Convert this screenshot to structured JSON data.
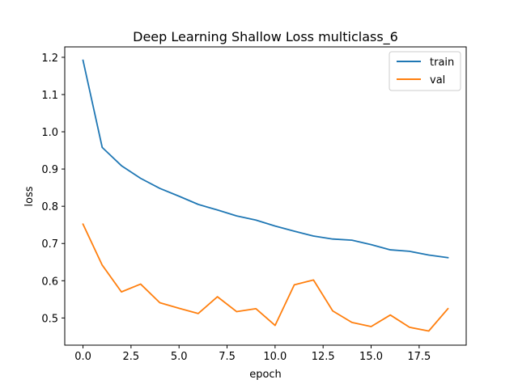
{
  "chart_data": {
    "type": "line",
    "title": "Deep Learning Shallow Loss multiclass_6",
    "xlabel": "epoch",
    "ylabel": "loss",
    "xlim": [
      -0.95,
      19.95
    ],
    "ylim": [
      0.427,
      1.228
    ],
    "xticks": [
      0.0,
      2.5,
      5.0,
      7.5,
      10.0,
      12.5,
      15.0,
      17.5
    ],
    "xtick_labels": [
      "0.0",
      "2.5",
      "5.0",
      "7.5",
      "10.0",
      "12.5",
      "15.0",
      "17.5"
    ],
    "yticks": [
      0.5,
      0.6,
      0.7,
      0.8,
      0.9,
      1.0,
      1.1,
      1.2
    ],
    "ytick_labels": [
      "0.5",
      "0.6",
      "0.7",
      "0.8",
      "0.9",
      "1.0",
      "1.1",
      "1.2"
    ],
    "grid": false,
    "legend": "top-right",
    "x": [
      0,
      1,
      2,
      3,
      4,
      5,
      6,
      7,
      8,
      9,
      10,
      11,
      12,
      13,
      14,
      15,
      16,
      17,
      18,
      19
    ],
    "series": [
      {
        "name": "train",
        "color": "#1f77b4",
        "values": [
          1.192,
          0.958,
          0.909,
          0.875,
          0.848,
          0.827,
          0.805,
          0.79,
          0.774,
          0.763,
          0.747,
          0.733,
          0.72,
          0.712,
          0.709,
          0.697,
          0.683,
          0.679,
          0.669,
          0.662
        ]
      },
      {
        "name": "val",
        "color": "#ff7f0e",
        "values": [
          0.752,
          0.642,
          0.57,
          0.591,
          0.541,
          0.526,
          0.512,
          0.557,
          0.517,
          0.525,
          0.48,
          0.589,
          0.602,
          0.519,
          0.488,
          0.477,
          0.508,
          0.475,
          0.465,
          0.525
        ]
      }
    ]
  }
}
